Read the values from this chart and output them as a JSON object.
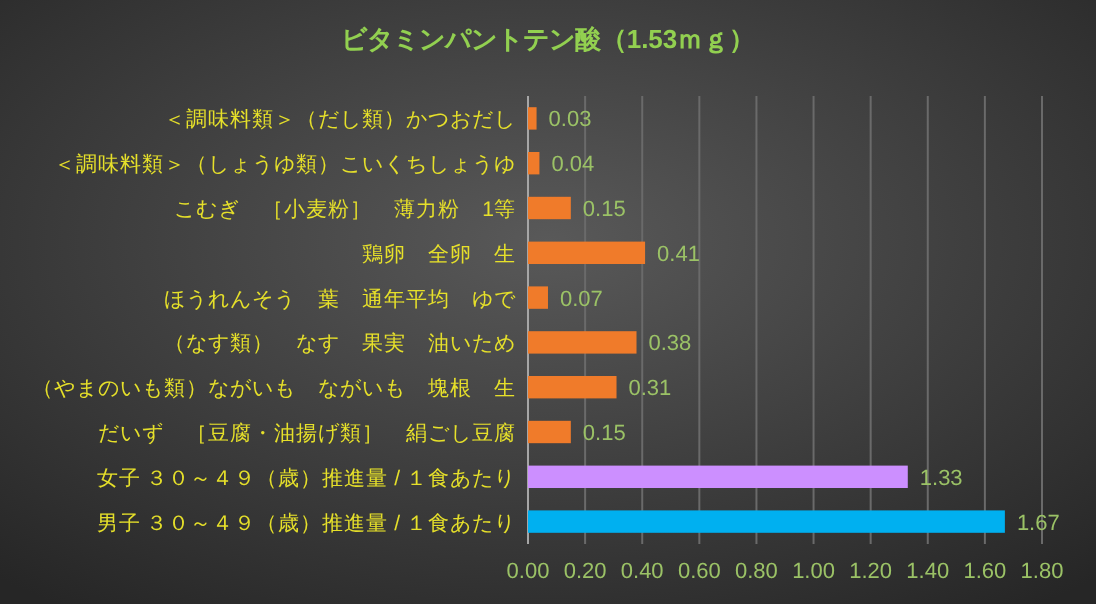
{
  "chart_data": {
    "type": "bar",
    "orientation": "horizontal",
    "title": "ビタミンパントテン酸（1.53ｍｇ）",
    "categories": [
      "＜調味料類＞（だし類）かつおだし",
      "＜調味料類＞（しょうゆ類）こいくちしょうゆ",
      "こむぎ　［小麦粉］　薄力粉　1等",
      "鶏卵　全卵　生",
      "ほうれんそう　葉　通年平均　ゆで",
      "（なす類）　なす　果実　油いため",
      "（やまのいも類）ながいも　ながいも　塊根　生",
      "だいず　［豆腐・油揚げ類］　絹ごし豆腐",
      "女子 ３０～４９（歳）推進量 / １食あたり",
      "男子 ３０～４９（歳）推進量 / １食あたり"
    ],
    "values": [
      0.03,
      0.04,
      0.15,
      0.41,
      0.07,
      0.38,
      0.31,
      0.15,
      1.33,
      1.67
    ],
    "colors": [
      "#f07b2a",
      "#f07b2a",
      "#f07b2a",
      "#f07b2a",
      "#f07b2a",
      "#f07b2a",
      "#f07b2a",
      "#f07b2a",
      "#cc8fff",
      "#00b0f0"
    ],
    "xlim": [
      0,
      1.8
    ],
    "xticks": [
      {
        "value": 0,
        "label": "0.00"
      },
      {
        "value": 0.2,
        "label": "0.20"
      },
      {
        "value": 0.4,
        "label": "0.40"
      },
      {
        "value": 0.6,
        "label": "0.60"
      },
      {
        "value": 0.8,
        "label": "0.80"
      },
      {
        "value": 1.0,
        "label": "1.00"
      },
      {
        "value": 1.2,
        "label": "1.20"
      },
      {
        "value": 1.4,
        "label": "1.40"
      },
      {
        "value": 1.6,
        "label": "1.60"
      },
      {
        "value": 1.8,
        "label": "1.80"
      }
    ],
    "grid": "x",
    "data_labels": true
  }
}
